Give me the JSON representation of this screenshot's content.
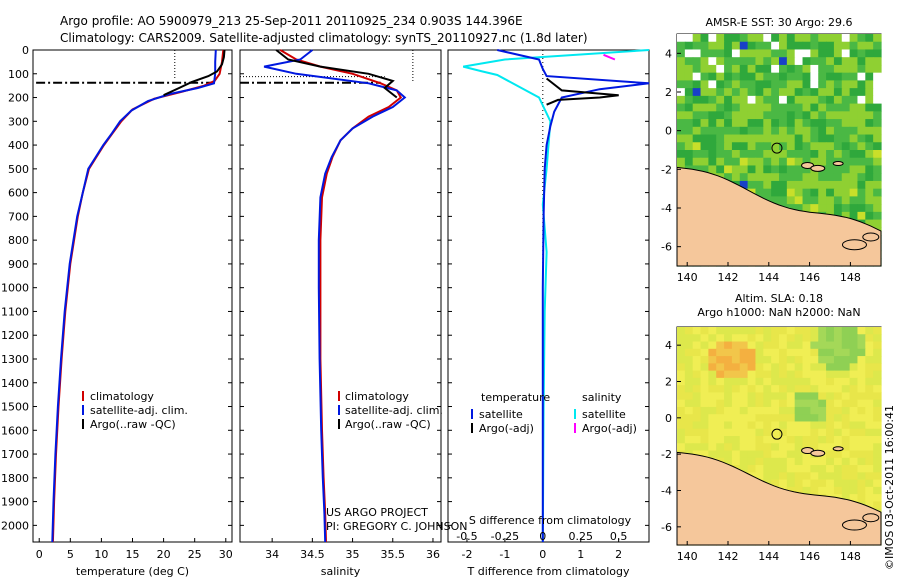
{
  "header": {
    "line1": "Argo profile: AO 5900979_213 25-Sep-2011 20110925_234 0.903S 144.396E",
    "line2": "Climatology: CARS2009. Satellite-adjusted climatology: synTS_20110927.nc (1.8d later)"
  },
  "colors": {
    "clim": "#d00000",
    "sat": "#0018e0",
    "argo": "#000000",
    "sat_sal": "#00e8f0",
    "argo_sal": "#ff00ff",
    "land": "#f5c79b",
    "sst_green": "#44c040"
  },
  "chart_data": [
    {
      "type": "line",
      "id": "temperature",
      "xlabel": "temperature (deg C)",
      "ylabel": "",
      "xlim": [
        -1,
        31
      ],
      "ylim": [
        2070,
        0
      ],
      "xticks": [
        0,
        5,
        10,
        15,
        20,
        25,
        30
      ],
      "yticks": [
        0,
        100,
        200,
        300,
        400,
        500,
        600,
        700,
        800,
        900,
        1000,
        1100,
        1200,
        1300,
        1400,
        1500,
        1600,
        1700,
        1800,
        1900,
        2000
      ],
      "legend": [
        "climatology",
        "satellite-adj. clim.",
        "Argo(..raw -QC)"
      ],
      "series": [
        {
          "name": "climatology",
          "x": [
            29.6,
            29.4,
            29.0,
            28.2,
            26.5,
            23.0,
            18.5,
            15.0,
            13.2,
            11.8,
            10.4,
            9.2,
            8.0,
            7.0,
            6.2,
            5.0,
            4.2,
            3.6,
            3.1,
            2.7,
            2.4,
            2.2
          ],
          "depth": [
            0,
            50,
            100,
            130,
            150,
            175,
            205,
            250,
            300,
            350,
            400,
            450,
            500,
            600,
            700,
            900,
            1100,
            1300,
            1500,
            1700,
            1900,
            2070
          ]
        },
        {
          "name": "satellite-adj. clim.",
          "x": [
            28.4,
            28.3,
            28.3,
            28.1,
            25.5,
            21.0,
            17.5,
            14.8,
            13.0,
            11.7,
            10.3,
            9.1,
            7.9,
            7.0,
            6.1,
            4.9,
            4.1,
            3.5,
            3.0,
            2.6,
            2.3,
            2.1
          ],
          "depth": [
            0,
            50,
            100,
            140,
            160,
            185,
            215,
            255,
            300,
            350,
            400,
            450,
            500,
            600,
            700,
            900,
            1100,
            1300,
            1500,
            1700,
            1900,
            2070
          ]
        },
        {
          "name": "Argo(..raw -QC)",
          "x": [
            29.8,
            29.7,
            29.4,
            28.6,
            27.2,
            24.5,
            22.5,
            20.0
          ],
          "depth": [
            0,
            30,
            60,
            90,
            110,
            135,
            160,
            190
          ]
        }
      ],
      "mld": {
        "x": [
          -0.5,
          12.0,
          22.0,
          28.0
        ],
        "depth": 138
      }
    },
    {
      "type": "line",
      "id": "salinity",
      "xlabel": "salinity",
      "xlim": [
        33.6,
        36.1
      ],
      "ylim": [
        2070,
        0
      ],
      "xticks": [
        34,
        34.5,
        35,
        35.5,
        36
      ],
      "legend": [
        "climatology",
        "satellite-adj. clim.",
        "Argo(..raw -QC)"
      ],
      "series": [
        {
          "name": "climatology",
          "x": [
            34.1,
            34.3,
            34.6,
            35.0,
            35.35,
            35.55,
            35.6,
            35.45,
            35.2,
            35.0,
            34.85,
            34.75,
            34.68,
            34.62,
            34.6,
            34.6,
            34.6,
            34.62,
            34.64,
            34.66,
            34.67
          ],
          "depth": [
            0,
            40,
            70,
            100,
            140,
            170,
            200,
            240,
            280,
            330,
            380,
            450,
            520,
            620,
            800,
            1000,
            1300,
            1600,
            1800,
            1950,
            2070
          ]
        },
        {
          "name": "satellite-adj. clim.",
          "x": [
            34.5,
            34.35,
            33.9,
            34.3,
            35.2,
            35.55,
            35.65,
            35.5,
            35.25,
            35.0,
            34.85,
            34.74,
            34.66,
            34.6,
            34.58,
            34.58,
            34.59,
            34.61,
            34.63,
            34.65,
            34.66
          ],
          "depth": [
            0,
            40,
            70,
            100,
            140,
            170,
            200,
            240,
            280,
            330,
            380,
            450,
            520,
            620,
            800,
            1000,
            1300,
            1600,
            1800,
            1950,
            2070
          ]
        },
        {
          "name": "Argo(..raw -QC)",
          "x": [
            34.05,
            34.2,
            34.6,
            35.2,
            35.5,
            35.4,
            35.55
          ],
          "depth": [
            0,
            40,
            70,
            100,
            130,
            160,
            200
          ]
        }
      ],
      "mld": {
        "x": [
          33.6,
          34.1,
          35.4,
          35.6
        ],
        "depth": 138
      }
    },
    {
      "type": "line",
      "id": "difference",
      "xlabel": "T difference from climatology",
      "xlabel_top": "S difference from climatology",
      "xlim": [
        -2.5,
        2.8
      ],
      "ylim": [
        2070,
        0
      ],
      "xticks": [
        -2,
        -1,
        0,
        1,
        2
      ],
      "xticks_top": [
        -0.5,
        -0.25,
        0,
        0.25,
        0.5
      ],
      "legend": [
        "temperature",
        "satellite",
        "Argo(-adj)",
        "salinity",
        "satellite",
        "Argo(-adj)"
      ],
      "series": [
        {
          "name": "T satellite",
          "x": [
            -1.2,
            -0.1,
            0.0,
            0.1,
            2.8,
            1.5,
            0.5,
            0.3,
            0.2,
            0.1,
            0.05,
            0.02,
            0.0,
            0.0
          ],
          "depth": [
            0,
            40,
            80,
            110,
            140,
            165,
            200,
            260,
            320,
            400,
            500,
            700,
            1000,
            2070
          ]
        },
        {
          "name": "S satellite",
          "x": [
            2.8,
            -1.0,
            -2.1,
            -1.6,
            -1.2,
            -0.1,
            0.2,
            0.1,
            0.0,
            0.1,
            0.05,
            0.02,
            0.0
          ],
          "depth": [
            0,
            40,
            70,
            90,
            105,
            200,
            300,
            500,
            650,
            850,
            1100,
            1500,
            2070
          ]
        },
        {
          "name": "T Argo(-adj)",
          "x": [
            0.1,
            0.5,
            2.0,
            1.5,
            0.4,
            0.1
          ],
          "depth": [
            120,
            170,
            190,
            200,
            210,
            230
          ]
        },
        {
          "name": "S Argo(-adj)",
          "x": [
            1.6,
            1.9
          ],
          "depth": [
            20,
            40
          ]
        }
      ]
    },
    {
      "type": "heatmap",
      "id": "sst",
      "title": "AMSR-E SST: 30 Argo: 29.6",
      "xlim": [
        139.5,
        149.5
      ],
      "ylim": [
        -7,
        5
      ],
      "xticks": [
        140,
        142,
        144,
        146,
        148
      ],
      "yticks": [
        4,
        2,
        0,
        -2,
        -4,
        -6
      ],
      "argo_position": [
        144.4,
        -0.9
      ]
    },
    {
      "type": "heatmap",
      "id": "sla",
      "title_line1": "Altim. SLA: 0.18",
      "title_line2": "Argo h1000: NaN h2000: NaN",
      "xlim": [
        139.5,
        149.5
      ],
      "ylim": [
        -7,
        5
      ],
      "xticks": [
        140,
        142,
        144,
        146,
        148
      ],
      "yticks": [
        4,
        2,
        0,
        -2,
        -4,
        -6
      ],
      "argo_position": [
        144.4,
        -0.9
      ]
    }
  ],
  "annotations": {
    "project": "US ARGO PROJECT",
    "pi": "PI: GREGORY C. JOHNSON",
    "credit": "©IMOS 03-Oct-2011 16:00:41"
  }
}
